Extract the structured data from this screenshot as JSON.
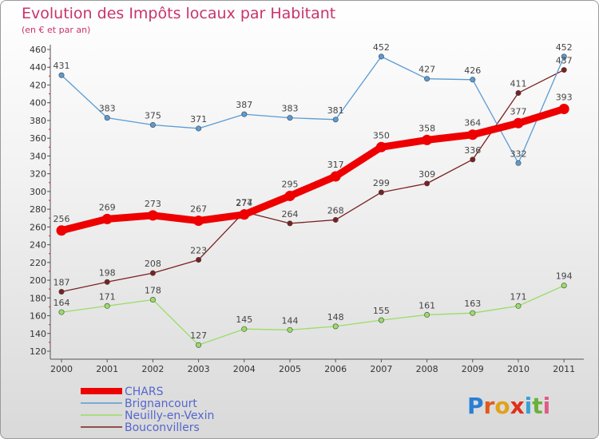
{
  "chart_data": {
    "type": "line",
    "title": "Evolution des Impôts locaux par Habitant",
    "subtitle": "(en € et par an)",
    "xlabel": "",
    "ylabel": "",
    "x": [
      "2000",
      "2001",
      "2002",
      "2003",
      "2004",
      "2005",
      "2006",
      "2007",
      "2008",
      "2009",
      "2010",
      "2011"
    ],
    "ylim": [
      120,
      460
    ],
    "yticks": [
      120,
      140,
      160,
      180,
      200,
      220,
      240,
      260,
      280,
      300,
      320,
      340,
      360,
      380,
      400,
      420,
      440,
      460
    ],
    "grid": false,
    "legend_position": "bottom-left",
    "series": [
      {
        "name": "CHARS",
        "color": "#ee0000",
        "values": [
          256,
          269,
          273,
          267,
          274,
          295,
          317,
          350,
          358,
          364,
          377,
          393
        ]
      },
      {
        "name": "Brignancourt",
        "color": "#5a9bd4",
        "values": [
          431,
          383,
          375,
          371,
          387,
          383,
          381,
          452,
          427,
          426,
          332,
          452
        ]
      },
      {
        "name": "Neuilly-en-Vexin",
        "color": "#99dd66",
        "values": [
          164,
          171,
          178,
          127,
          145,
          144,
          148,
          155,
          161,
          163,
          171,
          194
        ]
      },
      {
        "name": "Bouconvillers",
        "color": "#7a2020",
        "values": [
          187,
          198,
          208,
          223,
          277,
          264,
          268,
          299,
          309,
          336,
          411,
          437
        ]
      }
    ]
  },
  "logo": {
    "text": "Proxiti"
  }
}
